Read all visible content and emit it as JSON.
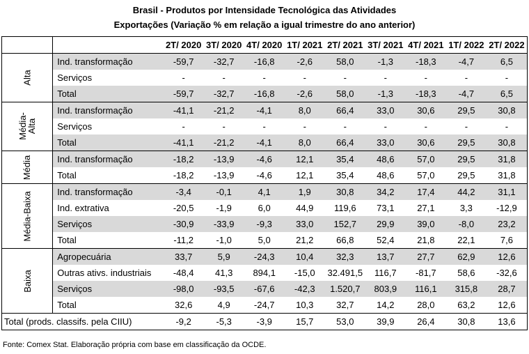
{
  "title_line1": "Brasil - Produtos por Intensidade Tecnológica das Atividades",
  "title_line2": "Exportações (Variação % em relação a igual trimestre do ano anterior)",
  "columns": [
    "2T/ 2020",
    "3T/ 2020",
    "4T/ 2020",
    "1T/ 2021",
    "2T/ 2021",
    "3T/ 2021",
    "4T/ 2021",
    "1T/ 2022",
    "2T/ 2022"
  ],
  "groups": [
    {
      "name": "Alta",
      "rows": [
        {
          "label": "Ind. transformação",
          "values": [
            "-59,7",
            "-32,7",
            "-16,8",
            "-2,6",
            "58,0",
            "-1,3",
            "-18,3",
            "-4,7",
            "6,5"
          ]
        },
        {
          "label": "Serviços",
          "values": [
            "-",
            "-",
            "-",
            "-",
            "-",
            "-",
            "-",
            "-",
            "-"
          ]
        },
        {
          "label": "Total",
          "values": [
            "-59,7",
            "-32,7",
            "-16,8",
            "-2,6",
            "58,0",
            "-1,3",
            "-18,3",
            "-4,7",
            "6,5"
          ]
        }
      ]
    },
    {
      "name": "Média-Alta",
      "rows": [
        {
          "label": "Ind. transformação",
          "values": [
            "-41,1",
            "-21,2",
            "-4,1",
            "8,0",
            "66,4",
            "33,0",
            "30,6",
            "29,5",
            "30,8"
          ]
        },
        {
          "label": "Serviços",
          "values": [
            "-",
            "-",
            "-",
            "-",
            "-",
            "-",
            "-",
            "-",
            "-"
          ]
        },
        {
          "label": "Total",
          "values": [
            "-41,1",
            "-21,2",
            "-4,1",
            "8,0",
            "66,4",
            "33,0",
            "30,6",
            "29,5",
            "30,8"
          ]
        }
      ]
    },
    {
      "name": "Média",
      "rows": [
        {
          "label": "Ind. transformação",
          "values": [
            "-18,2",
            "-13,9",
            "-4,6",
            "12,1",
            "35,4",
            "48,6",
            "57,0",
            "29,5",
            "31,8"
          ]
        },
        {
          "label": "Total",
          "values": [
            "-18,2",
            "-13,9",
            "-4,6",
            "12,1",
            "35,4",
            "48,6",
            "57,0",
            "29,5",
            "31,8"
          ]
        }
      ]
    },
    {
      "name": "Média-Baixa",
      "rows": [
        {
          "label": "Ind. transformação",
          "values": [
            "-3,4",
            "-0,1",
            "4,1",
            "1,9",
            "30,8",
            "34,2",
            "17,4",
            "44,2",
            "31,1"
          ]
        },
        {
          "label": "Ind. extrativa",
          "values": [
            "-20,5",
            "-1,9",
            "6,0",
            "44,9",
            "119,6",
            "73,1",
            "27,1",
            "3,3",
            "-12,9"
          ]
        },
        {
          "label": "Serviços",
          "values": [
            "-30,9",
            "-33,9",
            "-9,3",
            "33,0",
            "152,7",
            "29,9",
            "39,0",
            "-8,0",
            "23,2"
          ]
        },
        {
          "label": "Total",
          "values": [
            "-11,2",
            "-1,0",
            "5,0",
            "21,2",
            "66,8",
            "52,4",
            "21,8",
            "22,1",
            "7,6"
          ]
        }
      ]
    },
    {
      "name": "Baixa",
      "rows": [
        {
          "label": "Agropecuária",
          "values": [
            "33,7",
            "5,9",
            "-24,3",
            "10,4",
            "32,3",
            "13,7",
            "27,7",
            "62,9",
            "12,6"
          ]
        },
        {
          "label": "Outras ativs. industriais",
          "values": [
            "-48,4",
            "41,3",
            "894,1",
            "-15,0",
            "32.491,5",
            "116,7",
            "-81,7",
            "58,6",
            "-32,6"
          ]
        },
        {
          "label": "Serviços",
          "values": [
            "-98,0",
            "-93,5",
            "-67,6",
            "-42,3",
            "1.520,7",
            "803,9",
            "116,1",
            "315,8",
            "28,7"
          ]
        },
        {
          "label": "Total",
          "values": [
            "32,6",
            "4,9",
            "-24,7",
            "10,3",
            "32,7",
            "14,2",
            "28,0",
            "63,2",
            "12,6"
          ]
        }
      ]
    }
  ],
  "grand_total": {
    "label": "Total (prods. classifs. pela CIIU)",
    "values": [
      "-9,2",
      "-5,3",
      "-3,9",
      "15,7",
      "53,0",
      "39,9",
      "26,4",
      "30,8",
      "13,6"
    ]
  },
  "source": "Fonte: Comex Stat. Elaboração própria com base em classificação da OCDE."
}
